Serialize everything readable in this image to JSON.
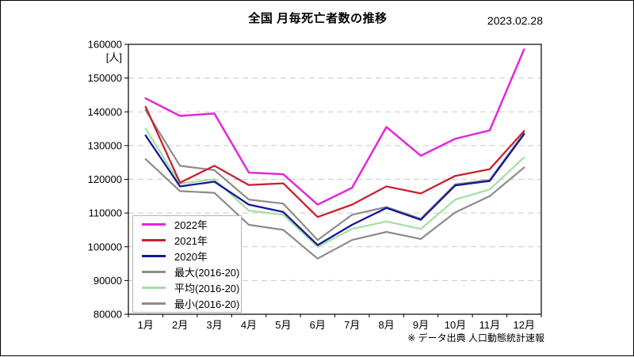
{
  "header": {
    "title": "全国 月毎死亡者数の推移",
    "date": "2023.02.28"
  },
  "footer": {
    "source_note": "※ データ出典 人口動態統計速報"
  },
  "chart_data": {
    "type": "line",
    "title": "全国 月毎死亡者数の推移",
    "unit_label": "[人]",
    "categories": [
      "1月",
      "2月",
      "3月",
      "4月",
      "5月",
      "6月",
      "7月",
      "8月",
      "9月",
      "10月",
      "11月",
      "12月"
    ],
    "series": [
      {
        "name": "2022年",
        "color": "#e426dc",
        "width": 2.5,
        "values": [
          144000,
          138800,
          139500,
          122000,
          121500,
          112500,
          117500,
          135500,
          127000,
          132000,
          134500,
          158500
        ]
      },
      {
        "name": "2021年",
        "color": "#cc1f2e",
        "width": 2.3,
        "values": [
          141500,
          119000,
          124000,
          118300,
          118800,
          108800,
          112500,
          117900,
          115800,
          121000,
          123000,
          134300
        ]
      },
      {
        "name": "2020年",
        "color": "#16169a",
        "width": 2.3,
        "values": [
          133000,
          117900,
          119300,
          112500,
          110300,
          100500,
          106500,
          111500,
          108000,
          118200,
          119500,
          133400
        ]
      },
      {
        "name": "最大(2016-20)",
        "color": "#8c8c8c",
        "width": 2.2,
        "values": [
          140500,
          124000,
          122700,
          114000,
          112800,
          102000,
          109500,
          111800,
          108300,
          118500,
          119800,
          133700
        ]
      },
      {
        "name": "平均(2016-20)",
        "color": "#a2dfa2",
        "width": 2.2,
        "values": [
          135000,
          118700,
          120000,
          110700,
          109500,
          100000,
          105300,
          107500,
          105300,
          114000,
          117000,
          126500
        ]
      },
      {
        "name": "最小(2016-20)",
        "color": "#8c8c8c",
        "width": 2.2,
        "values": [
          126000,
          116500,
          116000,
          106500,
          105000,
          96500,
          102000,
          104400,
          102300,
          110200,
          115000,
          123500
        ]
      }
    ],
    "draw_order": [
      3,
      4,
      5,
      2,
      1,
      0
    ],
    "ylim": [
      80000,
      160000
    ],
    "ytick_step": 10000,
    "grid": "horizontal-dashed",
    "legend_position": "middle-left"
  }
}
